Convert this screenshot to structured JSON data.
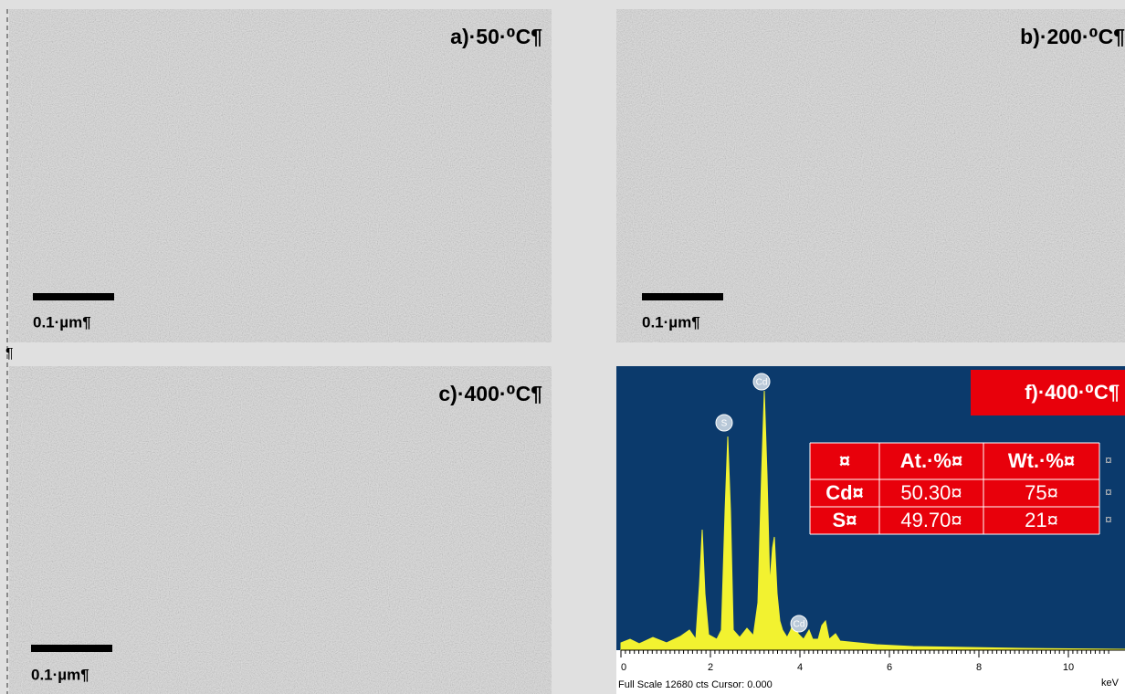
{
  "panels": [
    {
      "label": "a)·50·⁰C¶",
      "scale_bar": "0.1·µm¶"
    },
    {
      "label": "b)·200·⁰C¶",
      "scale_bar": "0.1·µm¶"
    },
    {
      "label": "c)·400·⁰C¶",
      "scale_bar": "0.1·µm¶"
    }
  ],
  "paragraph_mark": "¶",
  "spectrum": {
    "label": "f)·400·⁰C¶",
    "peak_labels": [
      "S",
      "Cd",
      "Cd"
    ],
    "xticks": [
      0,
      2,
      4,
      6,
      8,
      10
    ],
    "x_unit": "keV",
    "status": "Full Scale 12680 cts Cursor: 0.000",
    "table": {
      "header": [
        "¤",
        "At.·%¤",
        "Wt.·%¤"
      ],
      "rows": [
        [
          "Cd¤",
          "50.30¤",
          "75¤"
        ],
        [
          "S¤",
          "49.70¤",
          "21¤"
        ]
      ],
      "end_marks": [
        "¤",
        "¤",
        "¤"
      ]
    }
  }
}
